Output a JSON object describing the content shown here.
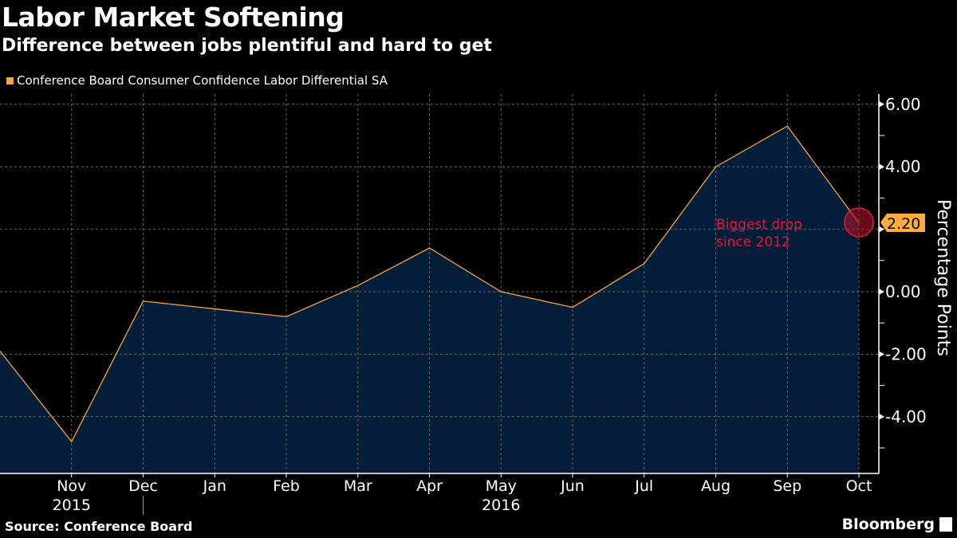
{
  "header": {
    "title": "Labor Market Softening",
    "subtitle": "Difference between jobs plentiful and hard to get"
  },
  "footer": {
    "source": "Source: Conference Board",
    "logo": "Bloomberg"
  },
  "colors": {
    "background": "#000000",
    "line": "#f5a540",
    "area": "#041e3a",
    "annotation": "#e8163c",
    "label_bg": "#ffab40"
  },
  "chart_data": {
    "type": "area",
    "title": "Labor Market Softening",
    "subtitle": "Difference between jobs plentiful and hard to get",
    "series": [
      {
        "name": "Conference Board Consumer Confidence Labor Differential SA",
        "x": [
          "2015-10",
          "2015-11",
          "2015-12",
          "2016-01",
          "2016-02",
          "2016-03",
          "2016-04",
          "2016-05",
          "2016-06",
          "2016-07",
          "2016-08",
          "2016-09",
          "2016-10"
        ],
        "values": [
          -1.9,
          -4.8,
          -0.3,
          -0.55,
          -0.8,
          0.2,
          1.4,
          0.0,
          -0.5,
          0.9,
          4.0,
          5.3,
          2.2
        ]
      }
    ],
    "x_tick_labels": [
      "Nov",
      "Dec",
      "Jan",
      "Feb",
      "Mar",
      "Apr",
      "May",
      "Jun",
      "Jul",
      "Aug",
      "Sep",
      "Oct"
    ],
    "x_year_labels": [
      {
        "label": "2015",
        "month": "Nov"
      },
      {
        "label": "2016",
        "month": "May"
      }
    ],
    "ylabel": "Percentage Points",
    "y_ticks": [
      "6.00",
      "4.00",
      "2.00",
      "0.00",
      "-2.00",
      "-4.00"
    ],
    "ylim": [
      -5.8,
      6.3
    ],
    "y_axis_side": "right",
    "grid": true,
    "legend_position": "top-left",
    "last_value_label": "2.20",
    "annotation": {
      "text_line1": "Biggest drop",
      "text_line2": "since 2012"
    }
  }
}
